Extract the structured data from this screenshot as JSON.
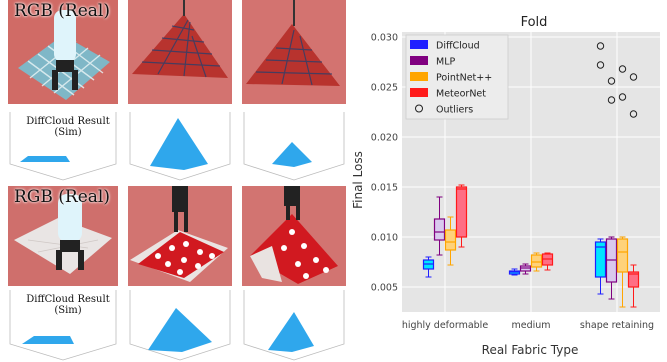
{
  "panels": {
    "rgb_label": "RGB (Real)",
    "sim_label_line1": "DiffCloud Result",
    "sim_label_line2": "(Sim)"
  },
  "chart_data": {
    "type": "box",
    "title": "Fold",
    "xlabel": "Real Fabric Type",
    "ylabel": "Final Loss",
    "categories": [
      "highly deformable",
      "medium",
      "shape retaining"
    ],
    "ylim": [
      0.0025,
      0.0305
    ],
    "yticks": [
      0.005,
      0.01,
      0.015,
      0.02,
      0.025,
      0.03
    ],
    "ytick_labels": [
      "0.005",
      "0.010",
      "0.015",
      "0.020",
      "0.025",
      "0.030"
    ],
    "grid": true,
    "legend_position": "top-left",
    "legend_outliers_label": "Outliers",
    "series": [
      {
        "name": "DiffCloud",
        "color": "#1f1fff",
        "fill": "#00e5ff",
        "boxes": [
          {
            "min": 0.006,
            "q1": 0.0068,
            "median": 0.0073,
            "q3": 0.0077,
            "max": 0.008
          },
          {
            "min": 0.0062,
            "q1": 0.0063,
            "median": 0.0065,
            "q3": 0.0066,
            "max": 0.0068
          },
          {
            "min": 0.0043,
            "q1": 0.006,
            "median": 0.009,
            "q3": 0.0095,
            "max": 0.0098
          }
        ]
      },
      {
        "name": "MLP",
        "color": "#800080",
        "fill": "#d9c9ee",
        "boxes": [
          {
            "min": 0.0082,
            "q1": 0.0097,
            "median": 0.0105,
            "q3": 0.0118,
            "max": 0.014
          },
          {
            "min": 0.0063,
            "q1": 0.0066,
            "median": 0.0069,
            "q3": 0.0071,
            "max": 0.0073
          },
          {
            "min": 0.0038,
            "q1": 0.0055,
            "median": 0.0077,
            "q3": 0.0098,
            "max": 0.01
          }
        ]
      },
      {
        "name": "PointNet++",
        "color": "#ffa500",
        "fill": "#ffd27a",
        "boxes": [
          {
            "min": 0.0072,
            "q1": 0.0087,
            "median": 0.0095,
            "q3": 0.0107,
            "max": 0.012
          },
          {
            "min": 0.0066,
            "q1": 0.007,
            "median": 0.0075,
            "q3": 0.0082,
            "max": 0.0084
          },
          {
            "min": 0.003,
            "q1": 0.0065,
            "median": 0.0085,
            "q3": 0.0098,
            "max": 0.01
          }
        ]
      },
      {
        "name": "MeteorNet",
        "color": "#ff1a1a",
        "fill": "#ff6e84",
        "boxes": [
          {
            "min": 0.009,
            "q1": 0.01,
            "median": 0.0148,
            "q3": 0.015,
            "max": 0.0152
          },
          {
            "min": 0.0067,
            "q1": 0.0072,
            "median": 0.0078,
            "q3": 0.0083,
            "max": 0.0084
          },
          {
            "min": 0.003,
            "q1": 0.005,
            "median": 0.0063,
            "q3": 0.0065,
            "max": 0.0072
          }
        ]
      }
    ],
    "outliers": [
      {
        "category": "shape retaining",
        "series": "DiffCloud",
        "y": 0.0291
      },
      {
        "category": "shape retaining",
        "series": "DiffCloud",
        "y": 0.0272
      },
      {
        "category": "shape retaining",
        "series": "MLP",
        "y": 0.0256
      },
      {
        "category": "shape retaining",
        "series": "MLP",
        "y": 0.0237
      },
      {
        "category": "shape retaining",
        "series": "PointNet++",
        "y": 0.0268
      },
      {
        "category": "shape retaining",
        "series": "PointNet++",
        "y": 0.024
      },
      {
        "category": "shape retaining",
        "series": "MeteorNet",
        "y": 0.026
      },
      {
        "category": "shape retaining",
        "series": "MeteorNet",
        "y": 0.0223
      }
    ]
  }
}
